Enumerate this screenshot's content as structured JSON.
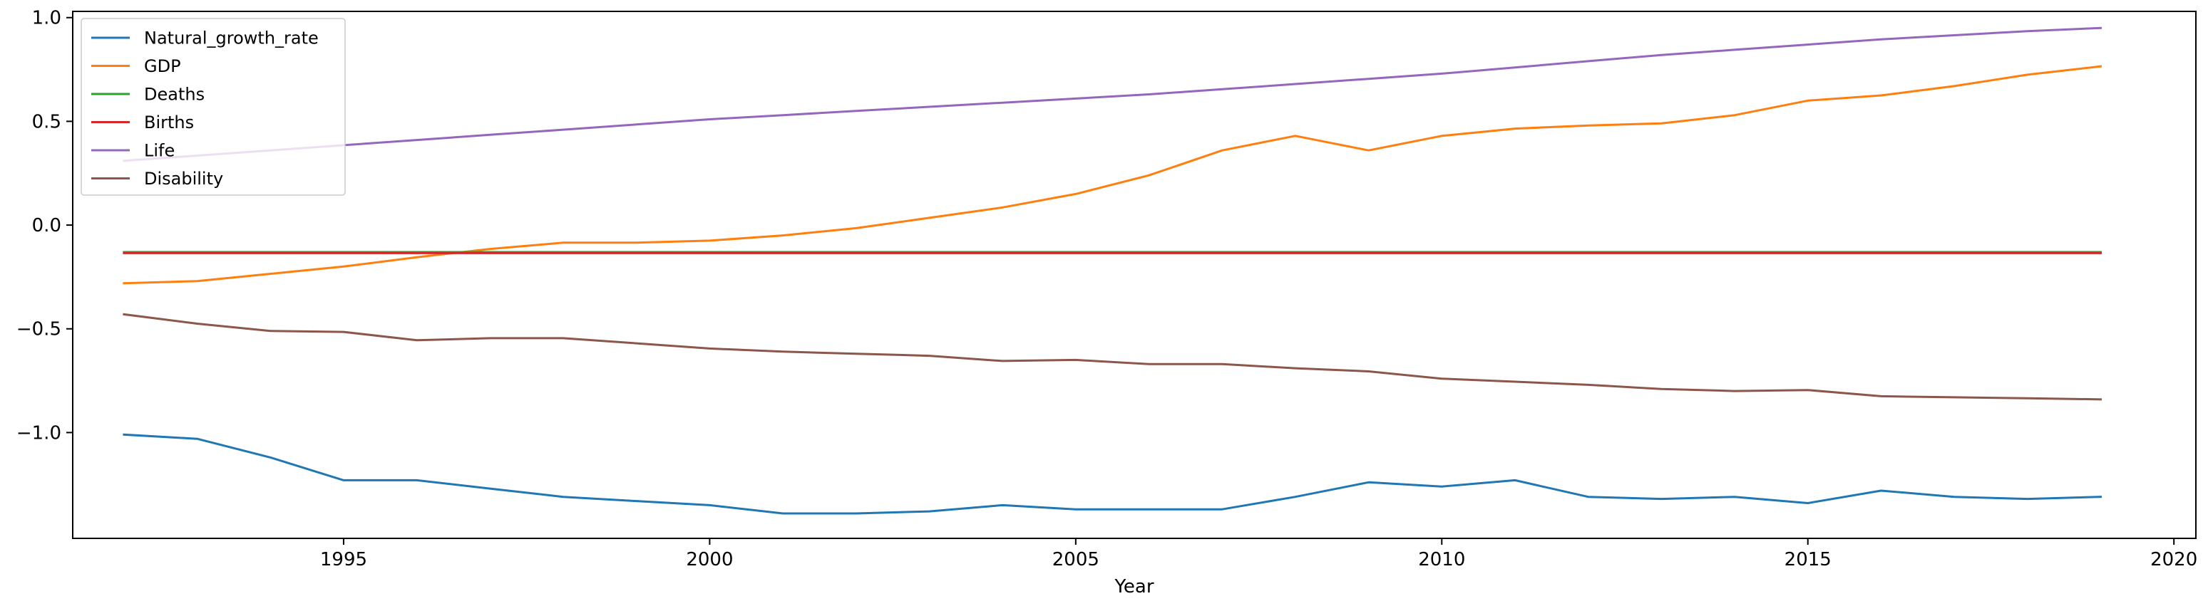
{
  "chart_data": {
    "type": "line",
    "title": "",
    "xlabel": "Year",
    "ylabel": "",
    "xlim": [
      1991.3,
      2020.3
    ],
    "ylim": [
      -1.51,
      1.03
    ],
    "xticks": [
      {
        "value": 1995,
        "label": "1995"
      },
      {
        "value": 2000,
        "label": "2000"
      },
      {
        "value": 2005,
        "label": "2005"
      },
      {
        "value": 2010,
        "label": "2010"
      },
      {
        "value": 2015,
        "label": "2015"
      },
      {
        "value": 2020,
        "label": "2020"
      }
    ],
    "yticks": [
      {
        "value": 1.0,
        "label": "1.0"
      },
      {
        "value": 0.5,
        "label": "0.5"
      },
      {
        "value": 0.0,
        "label": "0.0"
      },
      {
        "value": -0.5,
        "label": "−0.5"
      },
      {
        "value": -1.0,
        "label": "−1.0"
      }
    ],
    "grid": false,
    "legend_position": "upper-left",
    "x": [
      1992,
      1993,
      1994,
      1995,
      1996,
      1997,
      1998,
      1999,
      2000,
      2001,
      2002,
      2003,
      2004,
      2005,
      2006,
      2007,
      2008,
      2009,
      2010,
      2011,
      2012,
      2013,
      2014,
      2015,
      2016,
      2017,
      2018,
      2019
    ],
    "series": [
      {
        "name": "Natural_growth_rate",
        "color": "#1f77b4",
        "values": [
          -1.01,
          -1.03,
          -1.12,
          -1.23,
          -1.23,
          -1.27,
          -1.31,
          -1.33,
          -1.35,
          -1.39,
          -1.39,
          -1.38,
          -1.35,
          -1.37,
          -1.37,
          -1.37,
          -1.31,
          -1.24,
          -1.26,
          -1.23,
          -1.31,
          -1.32,
          -1.31,
          -1.34,
          -1.28,
          -1.31,
          -1.32,
          -1.31
        ]
      },
      {
        "name": "GDP",
        "color": "#ff7f0e",
        "values": [
          -0.28,
          -0.27,
          -0.235,
          -0.2,
          -0.155,
          -0.115,
          -0.085,
          -0.085,
          -0.075,
          -0.05,
          -0.015,
          0.035,
          0.085,
          0.15,
          0.24,
          0.36,
          0.43,
          0.36,
          0.43,
          0.465,
          0.48,
          0.49,
          0.53,
          0.6,
          0.625,
          0.67,
          0.725,
          0.765
        ]
      },
      {
        "name": "Deaths",
        "color": "#2ca02c",
        "values": [
          -0.13,
          -0.13,
          -0.13,
          -0.13,
          -0.13,
          -0.13,
          -0.13,
          -0.13,
          -0.13,
          -0.13,
          -0.13,
          -0.13,
          -0.13,
          -0.13,
          -0.13,
          -0.13,
          -0.13,
          -0.13,
          -0.13,
          -0.13,
          -0.13,
          -0.13,
          -0.13,
          -0.13,
          -0.13,
          -0.13,
          -0.13,
          -0.13
        ]
      },
      {
        "name": "Births",
        "color": "#d62728",
        "values": [
          -0.135,
          -0.135,
          -0.135,
          -0.135,
          -0.135,
          -0.135,
          -0.135,
          -0.135,
          -0.135,
          -0.135,
          -0.135,
          -0.135,
          -0.135,
          -0.135,
          -0.135,
          -0.135,
          -0.135,
          -0.135,
          -0.135,
          -0.135,
          -0.135,
          -0.135,
          -0.135,
          -0.135,
          -0.135,
          -0.135,
          -0.135,
          -0.135
        ]
      },
      {
        "name": "Life",
        "color": "#9467bd",
        "values": [
          0.31,
          0.335,
          0.36,
          0.385,
          0.41,
          0.435,
          0.46,
          0.485,
          0.51,
          0.53,
          0.55,
          0.57,
          0.59,
          0.61,
          0.63,
          0.655,
          0.68,
          0.705,
          0.73,
          0.76,
          0.79,
          0.82,
          0.845,
          0.87,
          0.895,
          0.915,
          0.935,
          0.95
        ]
      },
      {
        "name": "Disability",
        "color": "#8c564b",
        "values": [
          -0.43,
          -0.475,
          -0.51,
          -0.515,
          -0.555,
          -0.545,
          -0.545,
          -0.57,
          -0.595,
          -0.61,
          -0.62,
          -0.63,
          -0.655,
          -0.65,
          -0.67,
          -0.67,
          -0.69,
          -0.705,
          -0.74,
          -0.755,
          -0.77,
          -0.79,
          -0.8,
          -0.795,
          -0.825,
          -0.83,
          -0.835,
          -0.84
        ]
      }
    ]
  }
}
